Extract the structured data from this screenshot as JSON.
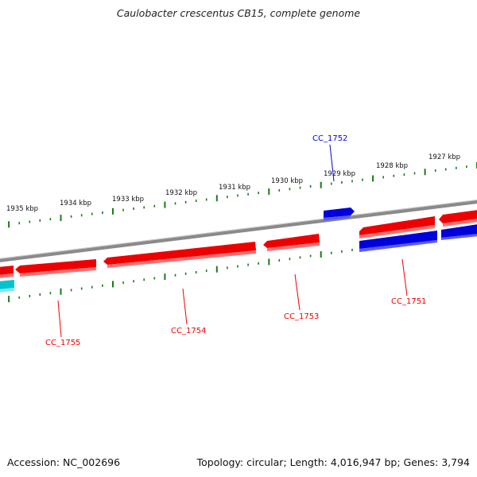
{
  "title": "Caulobacter crescentus CB15, complete genome",
  "footer": {
    "accession": "Accession: NC_002696",
    "summary": "Topology: circular; Length: 4,016,947 bp; Genes: 3,794"
  },
  "colors": {
    "forward_strand": "#0000dd",
    "reverse_strand": "#ee0000",
    "other_feature": "#00c4d0",
    "backbone": "#8a8a8a",
    "ticks": "#1a7a1a"
  },
  "kbp_labels": [
    "1927 kbp",
    "1928 kbp",
    "1929 kbp",
    "1930 kbp",
    "1931 kbp",
    "1932 kbp",
    "1933 kbp",
    "1934 kbp",
    "1935 kbp"
  ],
  "genes": {
    "cc1751": "CC_1751",
    "cc1752": "CC_1752",
    "cc1753": "CC_1753",
    "cc1754": "CC_1754",
    "cc1755": "CC_1755"
  }
}
